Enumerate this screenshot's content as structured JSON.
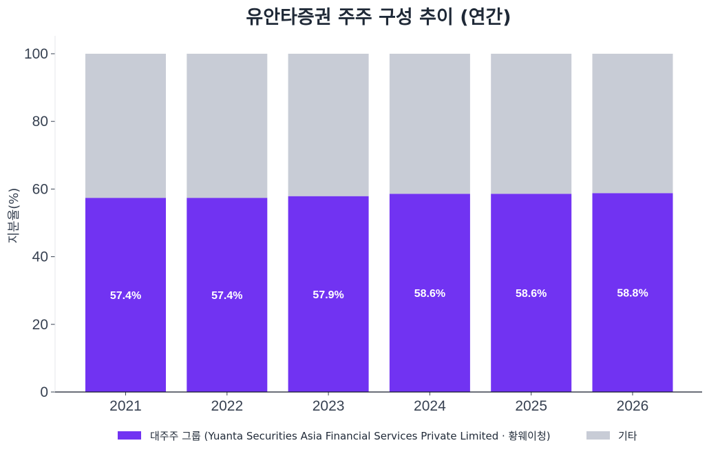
{
  "chart_data": {
    "type": "bar",
    "stacked": true,
    "title": "유안타증권 주주 구성 추이 (연간)",
    "ylabel": "지분율(%)",
    "xlabel": "",
    "categories": [
      "2021",
      "2022",
      "2023",
      "2024",
      "2025",
      "2026"
    ],
    "ylim": [
      0,
      100
    ],
    "yticks": [
      0,
      20,
      40,
      60,
      80,
      100
    ],
    "series": [
      {
        "name": "대주주 그룹 (Yuanta Securities Asia Financial Services Private Limited · 황웨이청)",
        "values": [
          57.4,
          57.4,
          57.9,
          58.6,
          58.6,
          58.8
        ],
        "labels": [
          "57.4%",
          "57.4%",
          "57.9%",
          "58.6%",
          "58.6%",
          "58.8%"
        ],
        "color": "#7133f2"
      },
      {
        "name": "기타",
        "values": [
          42.6,
          42.6,
          42.1,
          41.4,
          41.4,
          41.2
        ],
        "color": "#c8ccd6"
      }
    ],
    "legend": "bottom-center",
    "grid": false
  }
}
